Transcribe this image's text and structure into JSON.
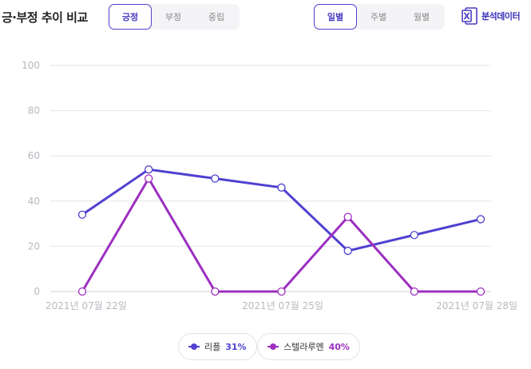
{
  "header": {
    "title": "긍·부정 추이 비교",
    "sentiment_tabs": [
      {
        "label": "긍정",
        "active": true
      },
      {
        "label": "부정",
        "active": false
      },
      {
        "label": "중립",
        "active": false
      }
    ],
    "period_tabs": [
      {
        "label": "일별",
        "active": true
      },
      {
        "label": "주별",
        "active": false
      },
      {
        "label": "월별",
        "active": false
      }
    ],
    "export_label": "분석데이터",
    "export_icon": "excel-icon"
  },
  "colors": {
    "accent": "#4a3cc0",
    "series_1": "#5040d0",
    "series_2": "#9c2fc0"
  },
  "chart_data": {
    "type": "line",
    "title": "",
    "xlabel": "",
    "ylabel": "",
    "ylim": [
      0,
      100
    ],
    "yticks": [
      0,
      20,
      40,
      60,
      80,
      100
    ],
    "grid": true,
    "x": [
      "2021-07-22",
      "2021-07-23",
      "2021-07-24",
      "2021-07-25",
      "2021-07-26",
      "2021-07-27",
      "2021-07-28"
    ],
    "xtick_labels": [
      {
        "index": 0,
        "label": "2021년 07월 22일"
      },
      {
        "index": 3,
        "label": "2021년 07월 25일"
      },
      {
        "index": 6,
        "label": "2021년 07월 28일"
      }
    ],
    "series": [
      {
        "name": "리플",
        "share": "31%",
        "color": "#5040d0",
        "values": [
          34,
          54,
          50,
          46,
          18,
          25,
          32
        ]
      },
      {
        "name": "스텔라루멘",
        "share": "40%",
        "color": "#9c2fc0",
        "values": [
          0,
          50,
          0,
          0,
          33,
          0,
          0
        ]
      }
    ],
    "legend_position": "bottom"
  }
}
